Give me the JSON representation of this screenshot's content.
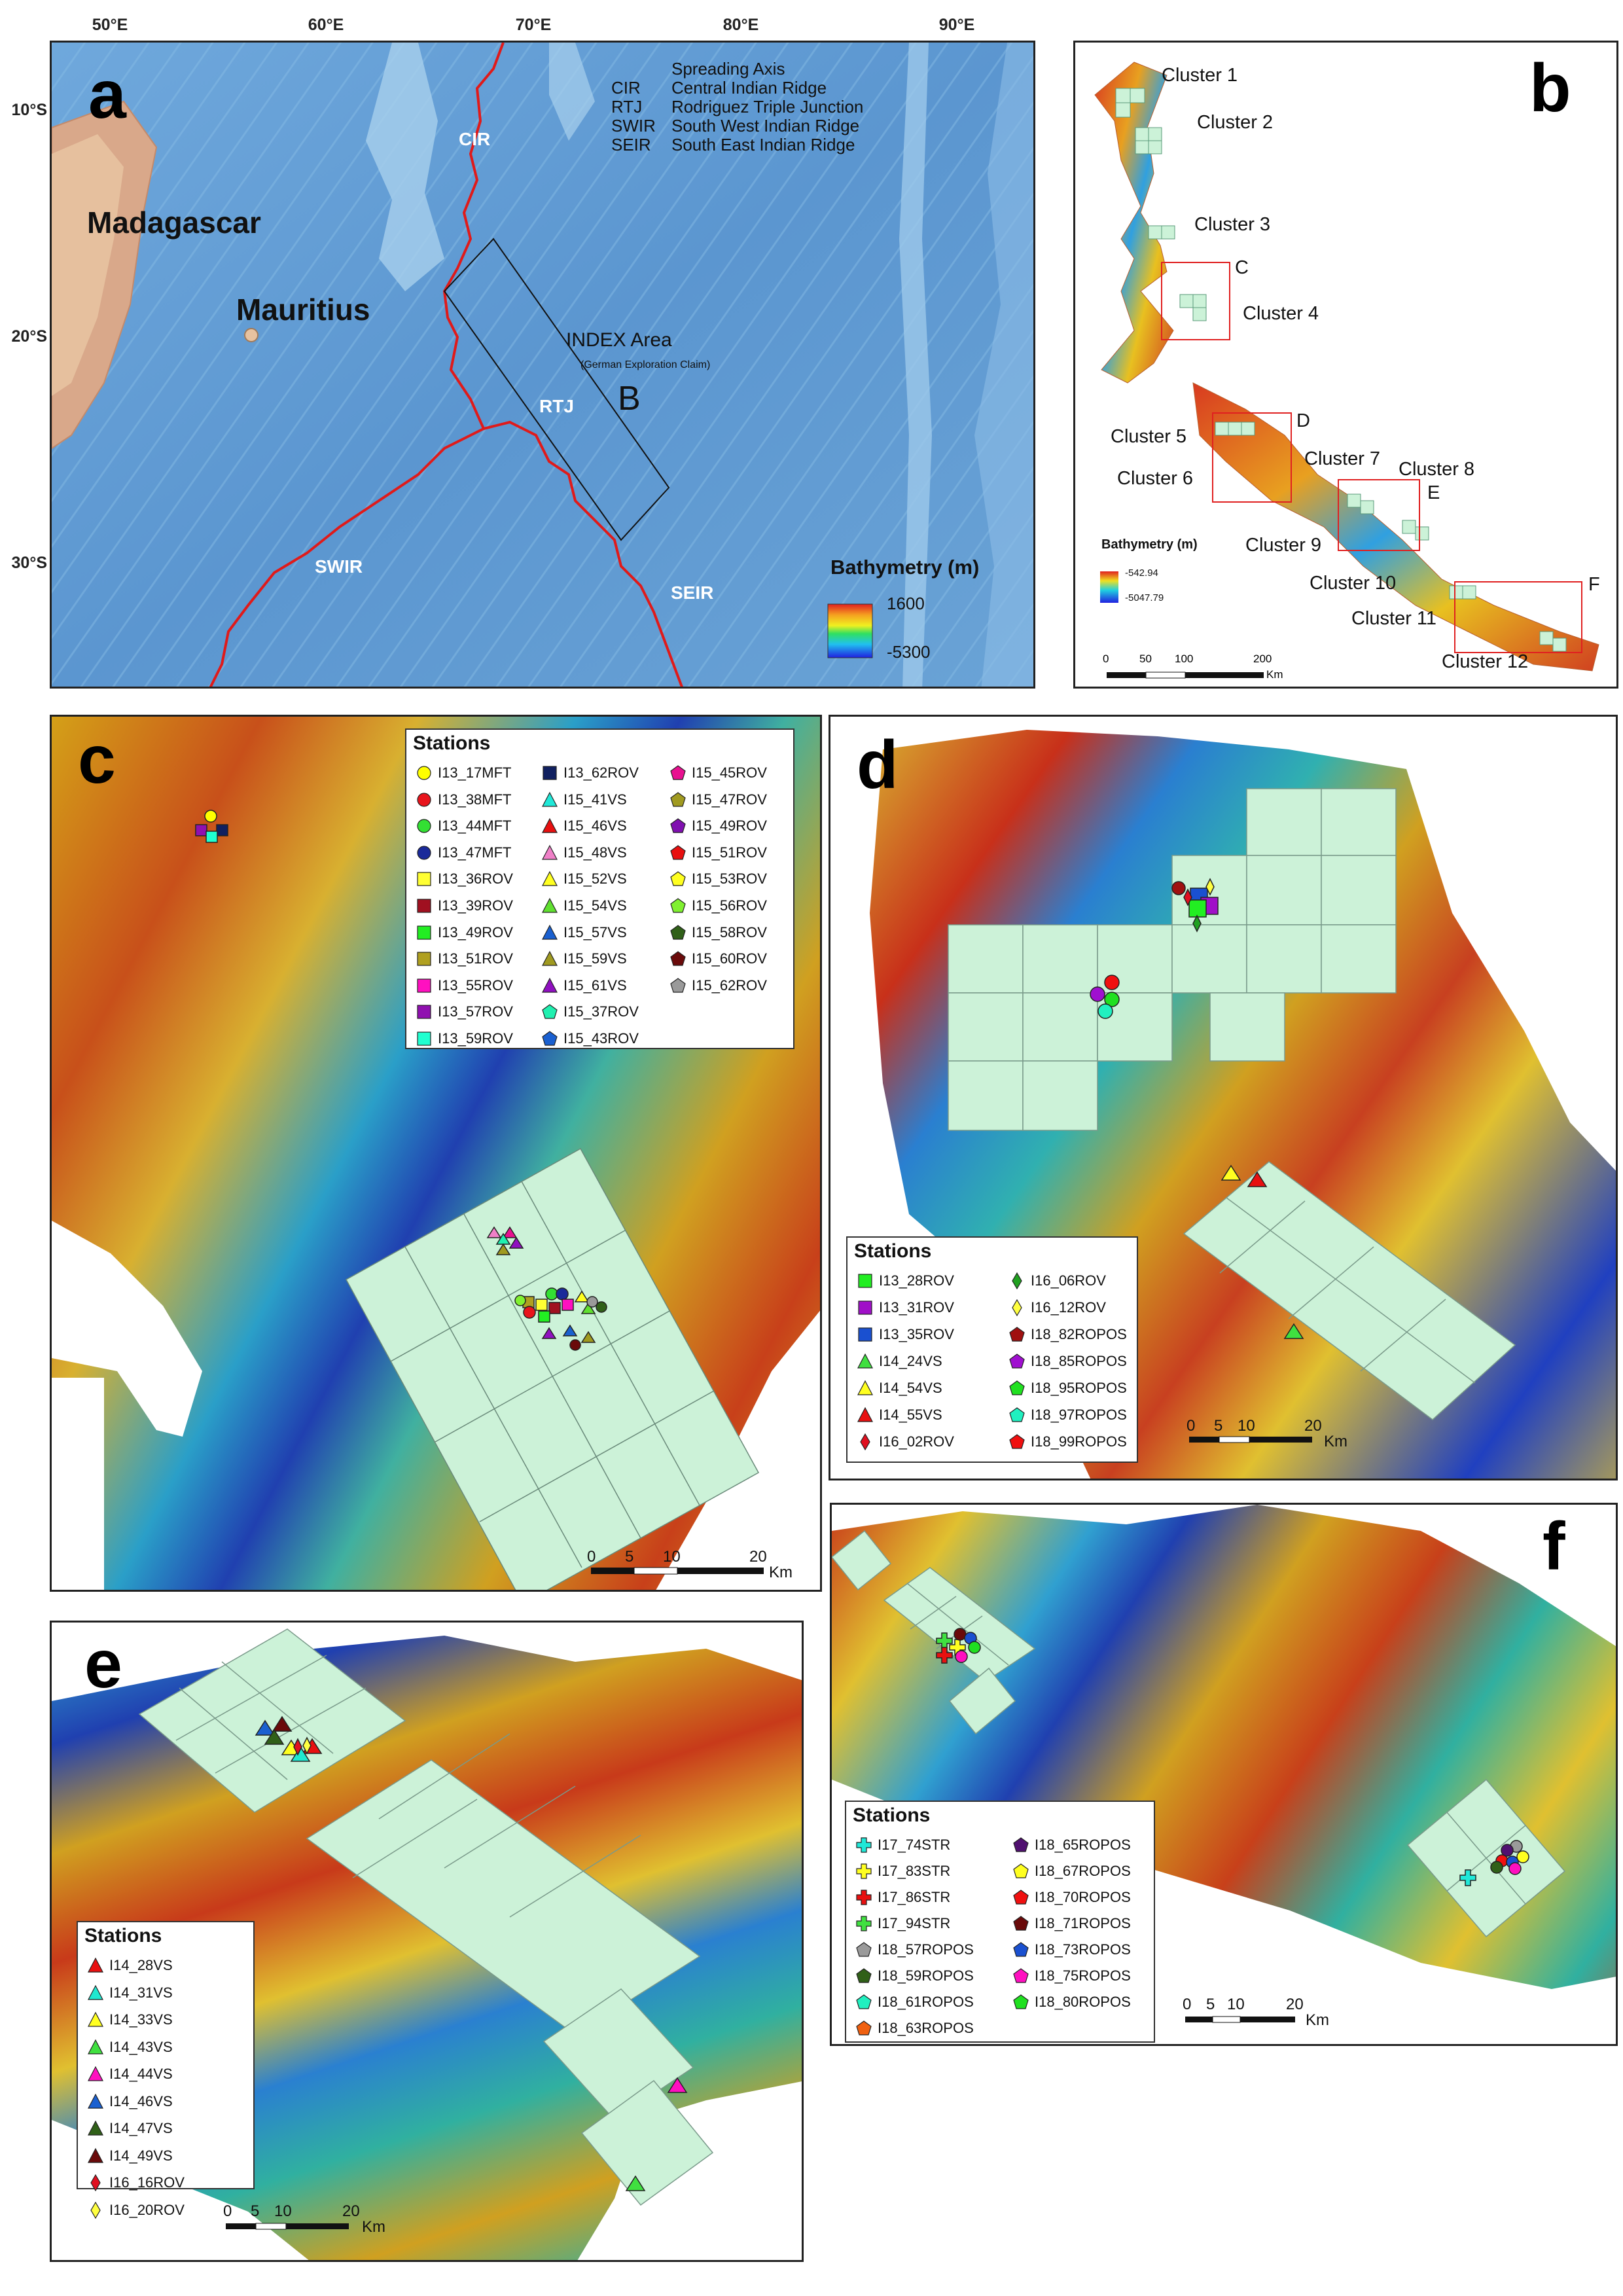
{
  "panel_a": {
    "label": "a",
    "lon_ticks": [
      "50°E",
      "60°E",
      "70°E",
      "80°E",
      "90°E"
    ],
    "lat_ticks": [
      "10°S",
      "20°S",
      "30°S"
    ],
    "places": [
      "Madagascar",
      "Mauritius"
    ],
    "ridges": [
      "CIR",
      "RTJ",
      "SWIR",
      "SEIR"
    ],
    "index_area": "INDEX Area",
    "index_sub": "(German Exploration Claim)",
    "box_letter": "B",
    "key": [
      [
        "",
        "Spreading Axis"
      ],
      [
        "CIR",
        "Central Indian Ridge"
      ],
      [
        "RTJ",
        "Rodriguez Triple Junction"
      ],
      [
        "SWIR",
        "South West Indian Ridge"
      ],
      [
        "SEIR",
        "South East Indian Ridge"
      ]
    ],
    "bathy_title": "Bathymetry (m)",
    "bathy_max": "1600",
    "bathy_min": "-5300"
  },
  "panel_b": {
    "label": "b",
    "clusters": [
      "Cluster 1",
      "Cluster 2",
      "Cluster 3",
      "Cluster 4",
      "Cluster 5",
      "Cluster 6",
      "Cluster 7",
      "Cluster 8",
      "Cluster 9",
      "Cluster 10",
      "Cluster 11",
      "Cluster 12"
    ],
    "boxes": [
      "C",
      "D",
      "E",
      "F"
    ],
    "bathy_title": "Bathymetry (m)",
    "bathy_max": "-542.94",
    "bathy_min": "-5047.79",
    "scale": [
      "0",
      "50",
      "100",
      "200"
    ],
    "scale_unit": "Km"
  },
  "panel_c": {
    "label": "c",
    "legend_title": "Stations",
    "stations": [
      {
        "name": "I13_17MFT",
        "shape": "circle",
        "color": "#ffff00"
      },
      {
        "name": "I13_38MFT",
        "shape": "circle",
        "color": "#e8141c"
      },
      {
        "name": "I13_44MFT",
        "shape": "circle",
        "color": "#33e033"
      },
      {
        "name": "I13_47MFT",
        "shape": "circle",
        "color": "#1a2a9a"
      },
      {
        "name": "I13_36ROV",
        "shape": "square",
        "color": "#ffff33"
      },
      {
        "name": "I13_39ROV",
        "shape": "square",
        "color": "#a01020"
      },
      {
        "name": "I13_49ROV",
        "shape": "square",
        "color": "#22ee22"
      },
      {
        "name": "I13_51ROV",
        "shape": "square",
        "color": "#b0a020"
      },
      {
        "name": "I13_55ROV",
        "shape": "square",
        "color": "#ff10c0"
      },
      {
        "name": "I13_57ROV",
        "shape": "square",
        "color": "#9010b0"
      },
      {
        "name": "I13_59ROV",
        "shape": "square",
        "color": "#20ffd0"
      },
      {
        "name": "I13_62ROV",
        "shape": "square",
        "color": "#102060"
      },
      {
        "name": "I15_41VS",
        "shape": "triangle",
        "color": "#20e8d8"
      },
      {
        "name": "I15_46VS",
        "shape": "triangle",
        "color": "#e81010"
      },
      {
        "name": "I15_48VS",
        "shape": "triangle",
        "color": "#f080c8"
      },
      {
        "name": "I15_52VS",
        "shape": "triangle",
        "color": "#ffff20"
      },
      {
        "name": "I15_54VS",
        "shape": "triangle",
        "color": "#60e030"
      },
      {
        "name": "I15_57VS",
        "shape": "triangle",
        "color": "#1a60d0"
      },
      {
        "name": "I15_59VS",
        "shape": "triangle",
        "color": "#a09a20"
      },
      {
        "name": "I15_61VS",
        "shape": "triangle",
        "color": "#9010c0"
      },
      {
        "name": "I15_37ROV",
        "shape": "pentagon",
        "color": "#20f0b0"
      },
      {
        "name": "I15_43ROV",
        "shape": "pentagon",
        "color": "#1a60d0"
      },
      {
        "name": "I15_45ROV",
        "shape": "pentagon",
        "color": "#e81090"
      },
      {
        "name": "I15_47ROV",
        "shape": "pentagon",
        "color": "#a09a20"
      },
      {
        "name": "I15_49ROV",
        "shape": "pentagon",
        "color": "#8010b0"
      },
      {
        "name": "I15_51ROV",
        "shape": "pentagon",
        "color": "#e81010"
      },
      {
        "name": "I15_53ROV",
        "shape": "pentagon",
        "color": "#ffff20"
      },
      {
        "name": "I15_56ROV",
        "shape": "pentagon",
        "color": "#80f030"
      },
      {
        "name": "I15_58ROV",
        "shape": "pentagon",
        "color": "#306018"
      },
      {
        "name": "I15_60ROV",
        "shape": "pentagon",
        "color": "#6a0a0a"
      },
      {
        "name": "I15_62ROV",
        "shape": "pentagon",
        "color": "#9a9a9a"
      }
    ],
    "scale": [
      "0",
      "5",
      "10",
      "20"
    ],
    "scale_unit": "Km"
  },
  "panel_d": {
    "label": "d",
    "legend_title": "Stations",
    "stations": [
      {
        "name": "I13_28ROV",
        "shape": "square",
        "color": "#22ee22"
      },
      {
        "name": "I13_31ROV",
        "shape": "square",
        "color": "#a010c8"
      },
      {
        "name": "I13_35ROV",
        "shape": "square",
        "color": "#1a50d0"
      },
      {
        "name": "I14_24VS",
        "shape": "triangle",
        "color": "#40e040"
      },
      {
        "name": "I14_54VS",
        "shape": "triangle",
        "color": "#ffff20"
      },
      {
        "name": "I14_55VS",
        "shape": "triangle",
        "color": "#e81010"
      },
      {
        "name": "I16_02ROV",
        "shape": "diamond",
        "color": "#e01020"
      },
      {
        "name": "I16_06ROV",
        "shape": "diamond",
        "color": "#20a020"
      },
      {
        "name": "I16_12ROV",
        "shape": "diamond",
        "color": "#ffff40"
      },
      {
        "name": "I18_82ROPOS",
        "shape": "pentagon",
        "color": "#a01010"
      },
      {
        "name": "I18_85ROPOS",
        "shape": "pentagon",
        "color": "#a010d0"
      },
      {
        "name": "I18_95ROPOS",
        "shape": "pentagon",
        "color": "#20e020"
      },
      {
        "name": "I18_97ROPOS",
        "shape": "pentagon",
        "color": "#20f0c0"
      },
      {
        "name": "I18_99ROPOS",
        "shape": "pentagon",
        "color": "#f01010"
      }
    ],
    "scale": [
      "0",
      "5",
      "10",
      "20"
    ],
    "scale_unit": "Km"
  },
  "panel_e": {
    "label": "e",
    "legend_title": "Stations",
    "stations": [
      {
        "name": "I14_28VS",
        "shape": "triangle",
        "color": "#e81010"
      },
      {
        "name": "I14_31VS",
        "shape": "triangle",
        "color": "#20e8d0"
      },
      {
        "name": "I14_33VS",
        "shape": "triangle",
        "color": "#ffff20"
      },
      {
        "name": "I14_43VS",
        "shape": "triangle",
        "color": "#40e040"
      },
      {
        "name": "I14_44VS",
        "shape": "triangle",
        "color": "#ff10c0"
      },
      {
        "name": "I14_46VS",
        "shape": "triangle",
        "color": "#1a60d0"
      },
      {
        "name": "I14_47VS",
        "shape": "triangle",
        "color": "#306018"
      },
      {
        "name": "I14_49VS",
        "shape": "triangle",
        "color": "#6a0a0a"
      },
      {
        "name": "I16_16ROV",
        "shape": "diamond",
        "color": "#e01020"
      },
      {
        "name": "I16_20ROV",
        "shape": "diamond",
        "color": "#ffff40"
      }
    ],
    "scale": [
      "0",
      "5",
      "10",
      "20"
    ],
    "scale_unit": "Km"
  },
  "panel_f": {
    "label": "f",
    "legend_title": "Stations",
    "stations": [
      {
        "name": "I17_74STR",
        "shape": "cross",
        "color": "#20e8d8"
      },
      {
        "name": "I17_83STR",
        "shape": "cross",
        "color": "#ffff20"
      },
      {
        "name": "I17_86STR",
        "shape": "cross",
        "color": "#e81010"
      },
      {
        "name": "I17_94STR",
        "shape": "cross",
        "color": "#40e040"
      },
      {
        "name": "I18_57ROPOS",
        "shape": "pentagon",
        "color": "#9a9a9a"
      },
      {
        "name": "I18_59ROPOS",
        "shape": "pentagon",
        "color": "#306018"
      },
      {
        "name": "I18_61ROPOS",
        "shape": "pentagon",
        "color": "#20f0c0"
      },
      {
        "name": "I18_63ROPOS",
        "shape": "pentagon",
        "color": "#f06010"
      },
      {
        "name": "I18_65ROPOS",
        "shape": "pentagon",
        "color": "#501070"
      },
      {
        "name": "I18_67ROPOS",
        "shape": "pentagon",
        "color": "#ffff20"
      },
      {
        "name": "I18_70ROPOS",
        "shape": "pentagon",
        "color": "#f01010"
      },
      {
        "name": "I18_71ROPOS",
        "shape": "pentagon",
        "color": "#6a0a0a"
      },
      {
        "name": "I18_73ROPOS",
        "shape": "pentagon",
        "color": "#1a50d0"
      },
      {
        "name": "I18_75ROPOS",
        "shape": "pentagon",
        "color": "#ff10c0"
      },
      {
        "name": "I18_80ROPOS",
        "shape": "pentagon",
        "color": "#20e020"
      }
    ],
    "scale": [
      "0",
      "5",
      "10",
      "20"
    ],
    "scale_unit": "Km"
  }
}
